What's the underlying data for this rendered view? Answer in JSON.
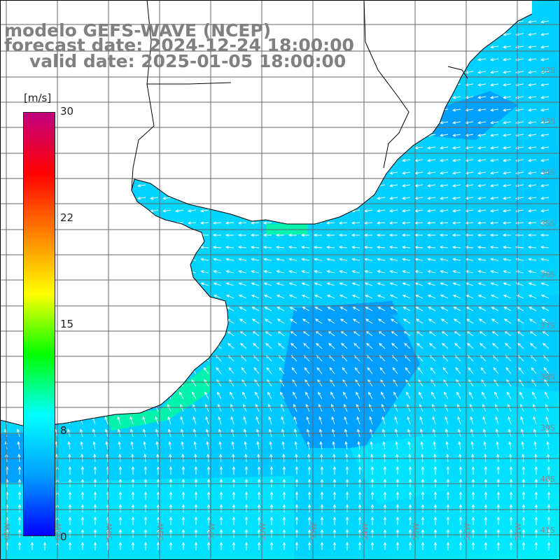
{
  "title": {
    "line1": "modelo GEFS-WAVE (NCEP)",
    "line2": "forecast date: 2024-12-24 18:00:00",
    "line3": "valid date: 2025-01-05 18:00:00"
  },
  "colorbar": {
    "unit": "[m/s]",
    "min": 0,
    "max": 30,
    "ticks": [
      "30",
      "22",
      "15",
      "8",
      "0"
    ],
    "stops": [
      "#0000ff",
      "#00a0ff",
      "#00ffff",
      "#00ff00",
      "#ffff00",
      "#ff8000",
      "#ff0000",
      "#c00080"
    ]
  },
  "map": {
    "lon_labels": [
      "61W",
      "60W",
      "59W",
      "58W",
      "57W",
      "56W",
      "55W",
      "54W",
      "53W",
      "52W",
      "51W"
    ],
    "lat_labels": [
      "32S",
      "33S",
      "34S",
      "35S",
      "36S",
      "37S",
      "38S",
      "39S",
      "40S",
      "41S"
    ],
    "colors": {
      "land": "#ffffff",
      "grid": "#666666",
      "coast": "#000000",
      "arrows": "#ffffff",
      "ocean_calm": "#00e8ff",
      "ocean_mid": "#00c8ff",
      "ocean_strong": "#0090ff",
      "ocean_green": "#00ff90"
    }
  }
}
